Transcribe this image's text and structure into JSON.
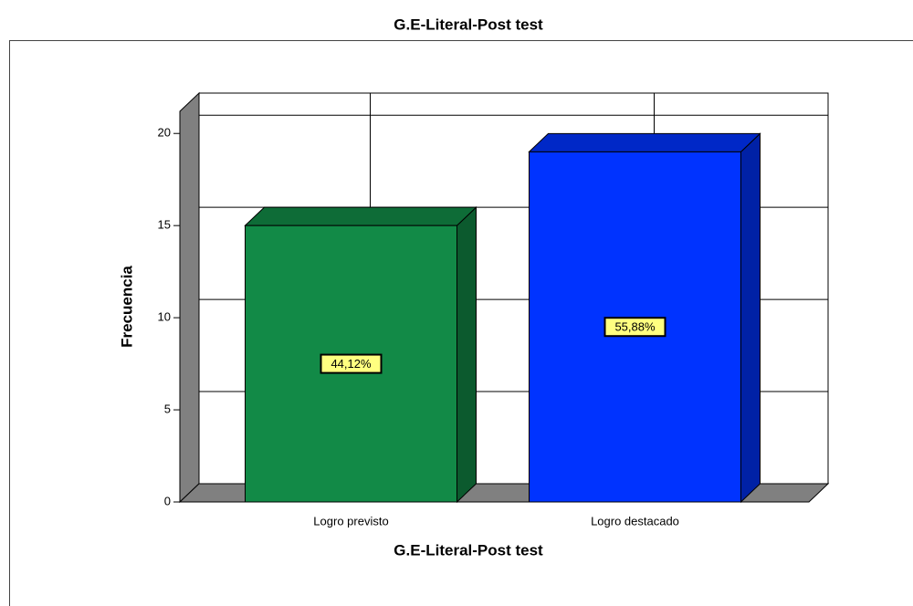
{
  "chart_data": {
    "type": "bar3d",
    "title": "G.E-Literal-Post test",
    "x_label": "G.E-Literal-Post test",
    "y_label": "Frecuencia",
    "categories": [
      "Logro previsto",
      "Logro destacado"
    ],
    "values": [
      15,
      19
    ],
    "data_labels": [
      "44,12%",
      "55,88%"
    ],
    "colors": [
      "#128a47",
      "#0033ff"
    ],
    "ylim": [
      0,
      21.2
    ],
    "yticks": [
      0,
      5,
      10,
      15,
      20
    ],
    "grid": true
  }
}
